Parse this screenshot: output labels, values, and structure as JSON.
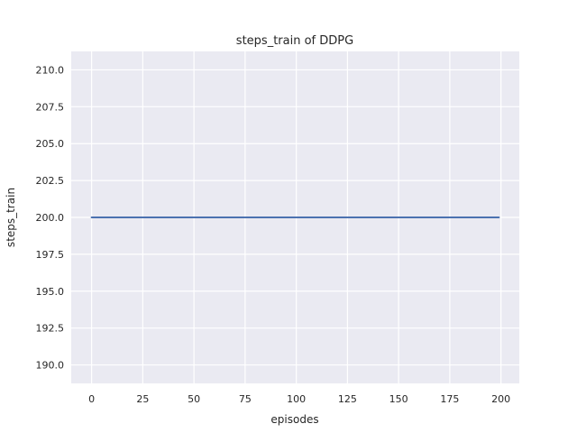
{
  "chart_data": {
    "type": "line",
    "title": "steps_train of DDPG",
    "xlabel": "episodes",
    "ylabel": "steps_train",
    "x_ticks": [
      0,
      25,
      50,
      75,
      100,
      125,
      150,
      175,
      200
    ],
    "x_tick_labels": [
      "0",
      "25",
      "50",
      "75",
      "100",
      "125",
      "150",
      "175",
      "200"
    ],
    "y_ticks": [
      190.0,
      192.5,
      195.0,
      197.5,
      200.0,
      202.5,
      205.0,
      207.5,
      210.0
    ],
    "y_tick_labels": [
      "190.0",
      "192.5",
      "195.0",
      "197.5",
      "200.0",
      "202.5",
      "205.0",
      "207.5",
      "210.0"
    ],
    "xlim": [
      -9.95,
      208.95
    ],
    "ylim": [
      188.75,
      211.25
    ],
    "grid": true,
    "legend": "none",
    "series": [
      {
        "name": "steps_train",
        "color": "#4c72b0",
        "x": [
          0,
          199
        ],
        "y": [
          200,
          200
        ],
        "description": "constant line at steps_train = 200 for episodes 0 through 199"
      }
    ],
    "colors": {
      "figure_bg": "#ffffff",
      "axes_bg": "#eaeaf2",
      "grid": "#ffffff",
      "text": "#262626",
      "line": "#4c72b0"
    }
  }
}
